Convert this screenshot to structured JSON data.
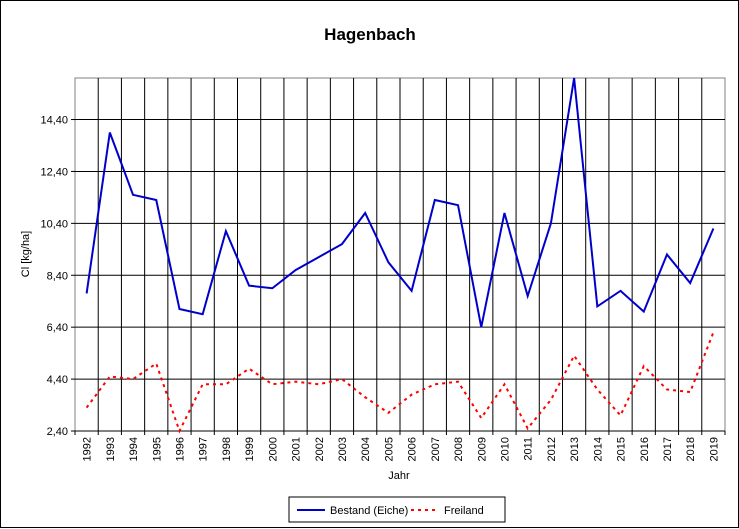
{
  "chart_data": {
    "type": "line",
    "title": "Hagenbach",
    "xlabel": "Jahr",
    "ylabel": "Cl [kg/ha]",
    "x": [
      "1992",
      "1993",
      "1994",
      "1995",
      "1996",
      "1997",
      "1998",
      "1999",
      "2000",
      "2001",
      "2002",
      "2003",
      "2004",
      "2005",
      "2006",
      "2007",
      "2008",
      "2009",
      "2010",
      "2011",
      "2012",
      "2013",
      "2014",
      "2015",
      "2016",
      "2017",
      "2018",
      "2019"
    ],
    "ylim": [
      2.4,
      16.0
    ],
    "yticks": [
      2.4,
      4.4,
      6.4,
      8.4,
      10.4,
      12.4,
      14.4
    ],
    "ytick_labels": [
      "2,40",
      "4,40",
      "6,40",
      "8,40",
      "10,40",
      "12,40",
      "14,40"
    ],
    "grid": true,
    "legend_position": "bottom",
    "series": [
      {
        "name": "Bestand (Eiche)",
        "color": "#0000cc",
        "style": "solid",
        "values": [
          7.7,
          13.9,
          11.5,
          11.3,
          7.1,
          6.9,
          10.1,
          8.0,
          7.9,
          8.6,
          9.1,
          9.6,
          10.8,
          8.9,
          7.8,
          11.3,
          11.1,
          6.4,
          10.8,
          7.6,
          10.4,
          16.0,
          7.2,
          7.8,
          7.0,
          9.2,
          8.1,
          10.2
        ]
      },
      {
        "name": "Freiland",
        "color": "#ff0000",
        "style": "dotted",
        "values": [
          3.3,
          4.5,
          4.4,
          5.0,
          2.4,
          4.2,
          4.2,
          4.8,
          4.2,
          4.3,
          4.2,
          4.4,
          3.7,
          3.1,
          3.8,
          4.2,
          4.3,
          2.9,
          4.2,
          2.5,
          3.6,
          5.3,
          4.0,
          3.0,
          4.9,
          4.0,
          3.9,
          6.2
        ]
      }
    ]
  }
}
